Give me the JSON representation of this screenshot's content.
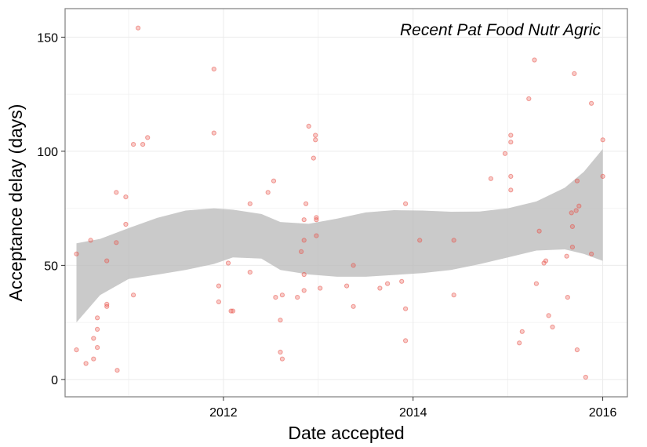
{
  "chart_data": {
    "type": "scatter",
    "annotation": "Recent Pat Food Nutr Agric",
    "xlabel": "Date accepted",
    "ylabel": "Acceptance delay (days)",
    "x_ticks": [
      2012,
      2014,
      2016
    ],
    "y_ticks": [
      0,
      50,
      100,
      150
    ],
    "xlim": [
      2010.33,
      2016.26
    ],
    "ylim": [
      -7.6,
      162.5
    ],
    "grid": true,
    "colors": {
      "point": "#e8534a",
      "band": "#b8b8b8",
      "panel_border": "#7f7f7f",
      "grid": "#ebebeb"
    },
    "points": [
      {
        "x": 2010.45,
        "y": 55
      },
      {
        "x": 2010.45,
        "y": 13
      },
      {
        "x": 2010.55,
        "y": 7
      },
      {
        "x": 2010.6,
        "y": 61
      },
      {
        "x": 2010.63,
        "y": 18
      },
      {
        "x": 2010.63,
        "y": 9
      },
      {
        "x": 2010.67,
        "y": 27
      },
      {
        "x": 2010.67,
        "y": 22
      },
      {
        "x": 2010.67,
        "y": 14
      },
      {
        "x": 2010.77,
        "y": 52
      },
      {
        "x": 2010.77,
        "y": 33
      },
      {
        "x": 2010.77,
        "y": 32
      },
      {
        "x": 2010.87,
        "y": 82
      },
      {
        "x": 2010.87,
        "y": 60
      },
      {
        "x": 2010.88,
        "y": 4
      },
      {
        "x": 2010.97,
        "y": 80
      },
      {
        "x": 2010.97,
        "y": 68
      },
      {
        "x": 2011.05,
        "y": 103
      },
      {
        "x": 2011.05,
        "y": 37
      },
      {
        "x": 2011.1,
        "y": 154
      },
      {
        "x": 2011.15,
        "y": 103
      },
      {
        "x": 2011.2,
        "y": 106
      },
      {
        "x": 2011.9,
        "y": 136
      },
      {
        "x": 2011.9,
        "y": 108
      },
      {
        "x": 2011.95,
        "y": 41
      },
      {
        "x": 2011.95,
        "y": 34
      },
      {
        "x": 2012.05,
        "y": 51
      },
      {
        "x": 2012.08,
        "y": 30
      },
      {
        "x": 2012.1,
        "y": 30
      },
      {
        "x": 2012.28,
        "y": 77
      },
      {
        "x": 2012.28,
        "y": 47
      },
      {
        "x": 2012.47,
        "y": 82
      },
      {
        "x": 2012.53,
        "y": 87
      },
      {
        "x": 2012.55,
        "y": 36
      },
      {
        "x": 2012.6,
        "y": 12
      },
      {
        "x": 2012.6,
        "y": 26
      },
      {
        "x": 2012.62,
        "y": 37
      },
      {
        "x": 2012.62,
        "y": 9
      },
      {
        "x": 2012.78,
        "y": 36
      },
      {
        "x": 2012.82,
        "y": 56
      },
      {
        "x": 2012.85,
        "y": 70
      },
      {
        "x": 2012.85,
        "y": 61
      },
      {
        "x": 2012.85,
        "y": 46
      },
      {
        "x": 2012.85,
        "y": 39
      },
      {
        "x": 2012.87,
        "y": 77
      },
      {
        "x": 2012.9,
        "y": 111
      },
      {
        "x": 2012.95,
        "y": 97
      },
      {
        "x": 2012.97,
        "y": 107
      },
      {
        "x": 2012.97,
        "y": 105
      },
      {
        "x": 2012.98,
        "y": 71
      },
      {
        "x": 2012.98,
        "y": 70
      },
      {
        "x": 2012.98,
        "y": 63
      },
      {
        "x": 2013.02,
        "y": 40
      },
      {
        "x": 2013.3,
        "y": 41
      },
      {
        "x": 2013.37,
        "y": 50
      },
      {
        "x": 2013.37,
        "y": 32
      },
      {
        "x": 2013.65,
        "y": 40
      },
      {
        "x": 2013.73,
        "y": 42
      },
      {
        "x": 2013.88,
        "y": 43
      },
      {
        "x": 2013.92,
        "y": 77
      },
      {
        "x": 2013.92,
        "y": 31
      },
      {
        "x": 2013.92,
        "y": 17
      },
      {
        "x": 2014.07,
        "y": 61
      },
      {
        "x": 2014.43,
        "y": 61
      },
      {
        "x": 2014.43,
        "y": 37
      },
      {
        "x": 2014.82,
        "y": 88
      },
      {
        "x": 2014.97,
        "y": 99
      },
      {
        "x": 2015.03,
        "y": 107
      },
      {
        "x": 2015.03,
        "y": 104
      },
      {
        "x": 2015.03,
        "y": 89
      },
      {
        "x": 2015.03,
        "y": 83
      },
      {
        "x": 2015.12,
        "y": 16
      },
      {
        "x": 2015.15,
        "y": 21
      },
      {
        "x": 2015.22,
        "y": 123
      },
      {
        "x": 2015.28,
        "y": 140
      },
      {
        "x": 2015.3,
        "y": 42
      },
      {
        "x": 2015.33,
        "y": 65
      },
      {
        "x": 2015.38,
        "y": 51
      },
      {
        "x": 2015.4,
        "y": 52
      },
      {
        "x": 2015.43,
        "y": 28
      },
      {
        "x": 2015.47,
        "y": 23
      },
      {
        "x": 2015.62,
        "y": 54
      },
      {
        "x": 2015.63,
        "y": 36
      },
      {
        "x": 2015.67,
        "y": 73
      },
      {
        "x": 2015.68,
        "y": 67
      },
      {
        "x": 2015.68,
        "y": 58
      },
      {
        "x": 2015.7,
        "y": 134
      },
      {
        "x": 2015.72,
        "y": 74
      },
      {
        "x": 2015.73,
        "y": 87
      },
      {
        "x": 2015.73,
        "y": 13
      },
      {
        "x": 2015.75,
        "y": 76
      },
      {
        "x": 2015.82,
        "y": 1
      },
      {
        "x": 2015.88,
        "y": 121
      },
      {
        "x": 2015.88,
        "y": 55
      },
      {
        "x": 2016.0,
        "y": 105
      },
      {
        "x": 2016.0,
        "y": 89
      }
    ],
    "smooth": {
      "x": [
        2010.45,
        2010.7,
        2011.0,
        2011.3,
        2011.6,
        2011.9,
        2012.1,
        2012.4,
        2012.6,
        2012.9,
        2013.2,
        2013.5,
        2013.8,
        2014.1,
        2014.4,
        2014.7,
        2015.0,
        2015.3,
        2015.6,
        2015.8,
        2016.0
      ],
      "upper": [
        59.7,
        61.6,
        66.3,
        70.8,
        74.0,
        75.0,
        74.4,
        72.5,
        69.0,
        68.2,
        70.5,
        73.2,
        74.2,
        74.0,
        73.5,
        73.6,
        75.0,
        78.0,
        84.0,
        91.0,
        101.0
      ],
      "lower": [
        25.0,
        37.0,
        44.0,
        45.9,
        48.0,
        50.6,
        53.5,
        53.0,
        48.0,
        46.0,
        45.0,
        45.0,
        45.8,
        46.6,
        48.0,
        50.5,
        53.5,
        56.5,
        57.0,
        55.0,
        52.0
      ]
    }
  }
}
